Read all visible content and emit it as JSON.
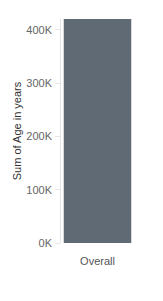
{
  "chart_data": {
    "type": "bar",
    "y_label": "Sum of Age in years",
    "categories": [
      "Overall"
    ],
    "values": [
      420000
    ],
    "color": "#5f6a75",
    "ylim": [
      0,
      420000
    ],
    "yticks": [
      {
        "value": 0,
        "label": "0K"
      },
      {
        "value": 100000,
        "label": "100K"
      },
      {
        "value": 200000,
        "label": "200K"
      },
      {
        "value": 300000,
        "label": "300K"
      },
      {
        "value": 400000,
        "label": "400K"
      }
    ],
    "grid": false
  }
}
